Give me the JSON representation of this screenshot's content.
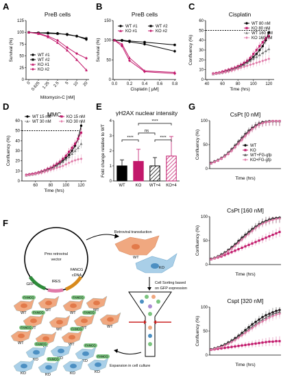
{
  "panel_letters": [
    "A",
    "B",
    "C",
    "D",
    "E",
    "F",
    "G"
  ],
  "chart_data": [
    {
      "id": "A",
      "type": "line",
      "title": "PreB cells",
      "xlabel": "Mitomycin-C [nM]",
      "ylabel": "Survival (%)",
      "categories": [
        "0",
        "0.625",
        "1.25",
        "2.5",
        "5",
        "10",
        "20"
      ],
      "ylim": [
        0,
        125
      ],
      "yticks": [
        0,
        25,
        50,
        75,
        100,
        125
      ],
      "legend_position": "bottom-left",
      "series": [
        {
          "name": "WT #1",
          "color": "#000000",
          "values": [
            100,
            99,
            99,
            98,
            95,
            92,
            85
          ]
        },
        {
          "name": "WT #2",
          "color": "#000000",
          "values": [
            100,
            99,
            98,
            97,
            96,
            92,
            87
          ]
        },
        {
          "name": "KO #1",
          "color": "#c2186b",
          "values": [
            100,
            97,
            90,
            78,
            62,
            42,
            20
          ]
        },
        {
          "name": "KO #2",
          "color": "#c2186b",
          "values": [
            100,
            98,
            92,
            83,
            68,
            55,
            45
          ]
        }
      ]
    },
    {
      "id": "B",
      "type": "line",
      "title": "PreB cells",
      "xlabel": "Cisplatin [ μM]",
      "ylabel": "Survival (%)",
      "x": [
        0,
        0.1,
        0.2,
        0.4,
        0.8
      ],
      "xlim": [
        0,
        0.8
      ],
      "xticks": [
        0.0,
        0.2,
        0.4,
        0.6,
        0.8
      ],
      "ylim": [
        0,
        150
      ],
      "yticks": [
        0,
        50,
        100,
        150
      ],
      "legend_position": "top",
      "series": [
        {
          "name": "WT #1",
          "color": "#000000",
          "values": [
            100,
            99,
            96,
            90,
            72
          ]
        },
        {
          "name": "WT #2",
          "color": "#000000",
          "values": [
            100,
            100,
            98,
            95,
            88
          ]
        },
        {
          "name": "KO #1",
          "color": "#c2186b",
          "values": [
            100,
            90,
            55,
            22,
            18
          ]
        },
        {
          "name": "KO #2",
          "color": "#c2186b",
          "values": [
            100,
            85,
            48,
            20,
            15
          ]
        }
      ]
    },
    {
      "id": "C",
      "type": "line",
      "title": "Cisplatin",
      "xlabel": "Time (hrs)",
      "ylabel": "Confluency (%)",
      "x": [
        48,
        52,
        56,
        60,
        64,
        68,
        72,
        76,
        80,
        84,
        88,
        92,
        96,
        100,
        104,
        108,
        112,
        116,
        120
      ],
      "xlim": [
        40,
        125
      ],
      "xticks": [
        40,
        60,
        80,
        100,
        120
      ],
      "ylim": [
        0,
        60
      ],
      "yticks": [
        0,
        10,
        20,
        30,
        40,
        50,
        60
      ],
      "reference_line": 50,
      "legend_position": "top-right",
      "series": [
        {
          "name": "WT 80 nM",
          "color": "#000000",
          "values": [
            6,
            6.5,
            7,
            7.5,
            8,
            9,
            10,
            11,
            12.5,
            14,
            16,
            18,
            20,
            23,
            26,
            30,
            34,
            40,
            48
          ]
        },
        {
          "name": "KO 80 nM",
          "color": "#c2186b",
          "values": [
            6,
            6.5,
            7,
            8,
            9,
            10,
            11,
            12,
            13.5,
            15,
            17,
            19,
            22,
            26,
            30,
            34,
            38,
            42,
            44
          ]
        },
        {
          "name": "WT 160 nM",
          "color": "#777777",
          "values": [
            5.5,
            6,
            6.5,
            7,
            8,
            9,
            10,
            11,
            12,
            13.5,
            15,
            17,
            19,
            21,
            23,
            25,
            27,
            29,
            31
          ]
        },
        {
          "name": "KO 160 nM",
          "color": "#e07aa8",
          "values": [
            5.5,
            6,
            6.5,
            7,
            7.5,
            8,
            9,
            10,
            11,
            12,
            13,
            14,
            15,
            16,
            17,
            18,
            19,
            20,
            21
          ]
        }
      ]
    },
    {
      "id": "D",
      "type": "line",
      "title": "MMC",
      "xlabel": "Time (hrs)",
      "ylabel": "Confluency (%)",
      "x": [
        48,
        52,
        56,
        60,
        64,
        68,
        72,
        76,
        80,
        84,
        88,
        92,
        96,
        100,
        104,
        108,
        112,
        116,
        120
      ],
      "xlim": [
        44,
        125
      ],
      "xticks": [
        60,
        80,
        100,
        120
      ],
      "ylim": [
        0,
        60
      ],
      "yticks": [
        0,
        10,
        20,
        30,
        40,
        50,
        60
      ],
      "reference_line": 50,
      "legend_position": "top",
      "series": [
        {
          "name": "WT 15 nM",
          "color": "#000000",
          "values": [
            6,
            6.5,
            7,
            7.5,
            8,
            9,
            10,
            11,
            12.5,
            14,
            16,
            18,
            20,
            23,
            26,
            30,
            35,
            42,
            55
          ]
        },
        {
          "name": "KO 15 nM",
          "color": "#c2186b",
          "values": [
            6,
            6.5,
            7,
            7.5,
            8.5,
            9.5,
            10.5,
            12,
            13,
            15,
            17,
            19,
            22,
            25,
            29,
            33,
            37,
            42,
            48
          ]
        },
        {
          "name": "WT 30 nM",
          "color": "#777777",
          "values": [
            5.5,
            6,
            6.5,
            7,
            8,
            9,
            10,
            11,
            12,
            13.5,
            15,
            17,
            19,
            21.5,
            24,
            27,
            30,
            33,
            37
          ]
        },
        {
          "name": "KO 30 nM",
          "color": "#e07aa8",
          "values": [
            5.5,
            6,
            6.5,
            7,
            7.5,
            8,
            9,
            10,
            11,
            12,
            13,
            14,
            15,
            16.5,
            18,
            19.5,
            20.5,
            21.5,
            22
          ]
        }
      ]
    },
    {
      "id": "E",
      "type": "bar",
      "title": "γH2AX nuclear intensity",
      "ylabel": "Fold change relative to WT",
      "categories": [
        "WT",
        "KO",
        "WT+4",
        "KO+4"
      ],
      "values": [
        1.0,
        1.3,
        1.0,
        1.65
      ],
      "errors": [
        0.4,
        0.8,
        0.55,
        1.3
      ],
      "colors": [
        "#000000",
        "#c2186b",
        "#000000",
        "#c2186b"
      ],
      "fills": [
        "solid",
        "solid",
        "hatched",
        "hatched"
      ],
      "ylim": [
        0,
        4
      ],
      "yticks": [
        0,
        1,
        2,
        3,
        4
      ],
      "significance": [
        {
          "from": 0,
          "to": 1,
          "label": "****"
        },
        {
          "from": 1,
          "to": 2,
          "label": "ns"
        },
        {
          "from": 1,
          "to": 3,
          "label": "****"
        },
        {
          "from": 2,
          "to": 3,
          "label": "****"
        }
      ]
    },
    {
      "id": "G1",
      "type": "line",
      "title": "CsPt [0 nM]",
      "xlabel": "Time (hrs)",
      "ylabel": "Confluency (%)",
      "x": [
        0,
        1,
        2,
        3,
        4,
        5,
        6,
        7,
        8,
        9,
        10,
        11,
        12,
        13,
        14,
        15,
        16,
        17,
        18,
        19,
        20
      ],
      "ylim": [
        0,
        100
      ],
      "yticks": [
        0,
        50,
        100
      ],
      "legend_position": "right",
      "series": [
        {
          "name": "WT",
          "color": "#000000",
          "values": [
            12,
            15,
            18,
            22,
            27,
            33,
            40,
            48,
            56,
            64,
            72,
            79,
            85,
            90,
            94,
            97,
            98,
            99,
            99,
            99,
            99
          ]
        },
        {
          "name": "KO",
          "color": "#c2186b",
          "values": [
            11,
            14,
            17,
            21,
            26,
            31,
            38,
            45,
            53,
            61,
            69,
            76,
            83,
            88,
            92,
            95,
            97,
            98,
            99,
            99,
            99
          ]
        },
        {
          "name": "WT+FG-gfp",
          "color": "#555555",
          "values": [
            12,
            15,
            18,
            22,
            27,
            33,
            39,
            47,
            55,
            63,
            71,
            78,
            84,
            89,
            93,
            96,
            98,
            99,
            99,
            99,
            99
          ]
        },
        {
          "name": "KO+FG-gfp",
          "color": "#e07aa8",
          "values": [
            11,
            14,
            17,
            21,
            25,
            31,
            37,
            45,
            52,
            60,
            68,
            75,
            82,
            87,
            92,
            95,
            97,
            98,
            99,
            99,
            99
          ]
        }
      ]
    },
    {
      "id": "G2",
      "type": "line",
      "title": "CsPt [160 nM]",
      "xlabel": "Time (hrs)",
      "ylabel": "Confluency (%)",
      "x": [
        0,
        1,
        2,
        3,
        4,
        5,
        6,
        7,
        8,
        9,
        10,
        11,
        12,
        13,
        14,
        15,
        16,
        17,
        18,
        19,
        20
      ],
      "ylim": [
        0,
        100
      ],
      "yticks": [
        0,
        50,
        100
      ],
      "series": [
        {
          "name": "WT",
          "color": "#000000",
          "values": [
            12,
            14,
            17,
            21,
            25,
            30,
            36,
            42,
            49,
            56,
            62,
            68,
            74,
            79,
            84,
            88,
            91,
            94,
            96,
            97,
            98
          ]
        },
        {
          "name": "KO",
          "color": "#c2186b",
          "values": [
            11,
            13,
            15,
            17,
            20,
            23,
            26,
            29,
            32,
            35,
            38,
            41,
            44,
            47,
            50,
            53,
            56,
            59,
            62,
            65,
            68
          ]
        },
        {
          "name": "WT+FG-gfp",
          "color": "#555555",
          "values": [
            12,
            14,
            17,
            20,
            24,
            29,
            34,
            40,
            47,
            54,
            60,
            66,
            72,
            78,
            83,
            87,
            90,
            93,
            95,
            96,
            97
          ]
        },
        {
          "name": "KO+FG-gfp",
          "color": "#e07aa8",
          "values": [
            11,
            13,
            16,
            19,
            23,
            28,
            33,
            39,
            45,
            52,
            58,
            64,
            70,
            76,
            81,
            85,
            88,
            91,
            93,
            95,
            96
          ]
        }
      ]
    },
    {
      "id": "G3",
      "type": "line",
      "title": "Cspt [320 nM]",
      "xlabel": "Time (hrs)",
      "ylabel": "Confluency (%)",
      "x": [
        0,
        1,
        2,
        3,
        4,
        5,
        6,
        7,
        8,
        9,
        10,
        11,
        12,
        13,
        14,
        15,
        16,
        17,
        18,
        19,
        20
      ],
      "ylim": [
        0,
        100
      ],
      "yticks": [
        0,
        50,
        100
      ],
      "series": [
        {
          "name": "WT",
          "color": "#000000",
          "values": [
            12,
            14,
            16,
            19,
            22,
            26,
            30,
            35,
            40,
            46,
            52,
            58,
            64,
            69,
            74,
            79,
            83,
            86,
            89,
            92,
            94
          ]
        },
        {
          "name": "KO",
          "color": "#c2186b",
          "values": [
            11,
            12,
            13,
            14,
            15,
            16,
            17,
            18,
            19,
            20,
            21,
            22,
            23,
            24,
            25,
            26,
            27,
            28,
            28,
            29,
            29
          ]
        },
        {
          "name": "WT+FG-gfp",
          "color": "#555555",
          "values": [
            12,
            14,
            16,
            18,
            21,
            25,
            29,
            33,
            38,
            43,
            48,
            54,
            59,
            64,
            69,
            74,
            78,
            82,
            85,
            88,
            90
          ]
        },
        {
          "name": "KO+FG-gfp",
          "color": "#e07aa8",
          "values": [
            11,
            13,
            15,
            17,
            20,
            23,
            27,
            31,
            36,
            41,
            46,
            51,
            56,
            61,
            66,
            70,
            74,
            78,
            81,
            84,
            86
          ]
        }
      ]
    }
  ],
  "schematic_F": {
    "vector_label_1": "Pmx retroviral",
    "vector_label_2": "vector",
    "gene_label_1": "FANCG",
    "gene_label_2": "cDNA",
    "gfp_label": "GFP",
    "ires_label": "IRES",
    "step_1": "Retroviral transduction",
    "step_2_line_1": "Cell Sorting based",
    "step_2_line_2": "on GFP expression",
    "step_3": "Expansion in cell culture",
    "wt_cell_label": "WT",
    "ko_cell_label": "KO",
    "fancg_tag": "FANCG",
    "colors": {
      "wt_cell": "#f0a880",
      "ko_cell": "#a9cfe8",
      "gfp_cell": "#7bc47f",
      "gfp_arc": "#2e8b3a",
      "ires_arc": "#e07aa8",
      "fancg_arc": "#d88a1c"
    }
  }
}
